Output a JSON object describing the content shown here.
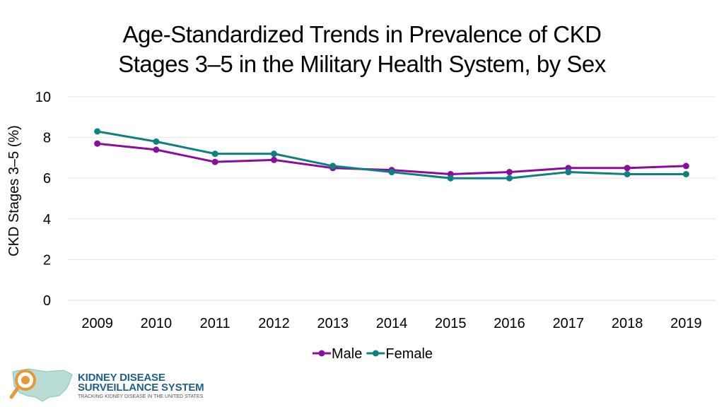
{
  "title": {
    "line1": "Age-Standardized Trends in Prevalence of CKD",
    "line2": "Stages 3–5 in the Military Health System, by Sex"
  },
  "chart_data": {
    "type": "line",
    "title": "Age-Standardized Trends in Prevalence of CKD Stages 3–5 in the Military Health System, by Sex",
    "xlabel": "",
    "ylabel": "CKD Stages 3–5 (%)",
    "categories": [
      "2009",
      "2010",
      "2011",
      "2012",
      "2013",
      "2014",
      "2015",
      "2016",
      "2017",
      "2018",
      "2019"
    ],
    "ylim": [
      0,
      10
    ],
    "yticks": [
      "0",
      "2",
      "4",
      "6",
      "8",
      "10"
    ],
    "grid": true,
    "legend_position": "bottom",
    "series": [
      {
        "name": "Male",
        "color": "#8b0d9c",
        "values": [
          7.7,
          7.4,
          6.8,
          6.9,
          6.5,
          6.4,
          6.2,
          6.3,
          6.5,
          6.5,
          6.6
        ]
      },
      {
        "name": "Female",
        "color": "#0e8080",
        "values": [
          8.3,
          7.8,
          7.2,
          7.2,
          6.6,
          6.3,
          6.0,
          6.0,
          6.3,
          6.2,
          6.2
        ]
      }
    ]
  },
  "logo": {
    "line1": "KIDNEY DISEASE",
    "line2": "SURVEILLANCE SYSTEM",
    "line3": "TRACKING KIDNEY DISEASE IN THE UNITED STATES"
  }
}
